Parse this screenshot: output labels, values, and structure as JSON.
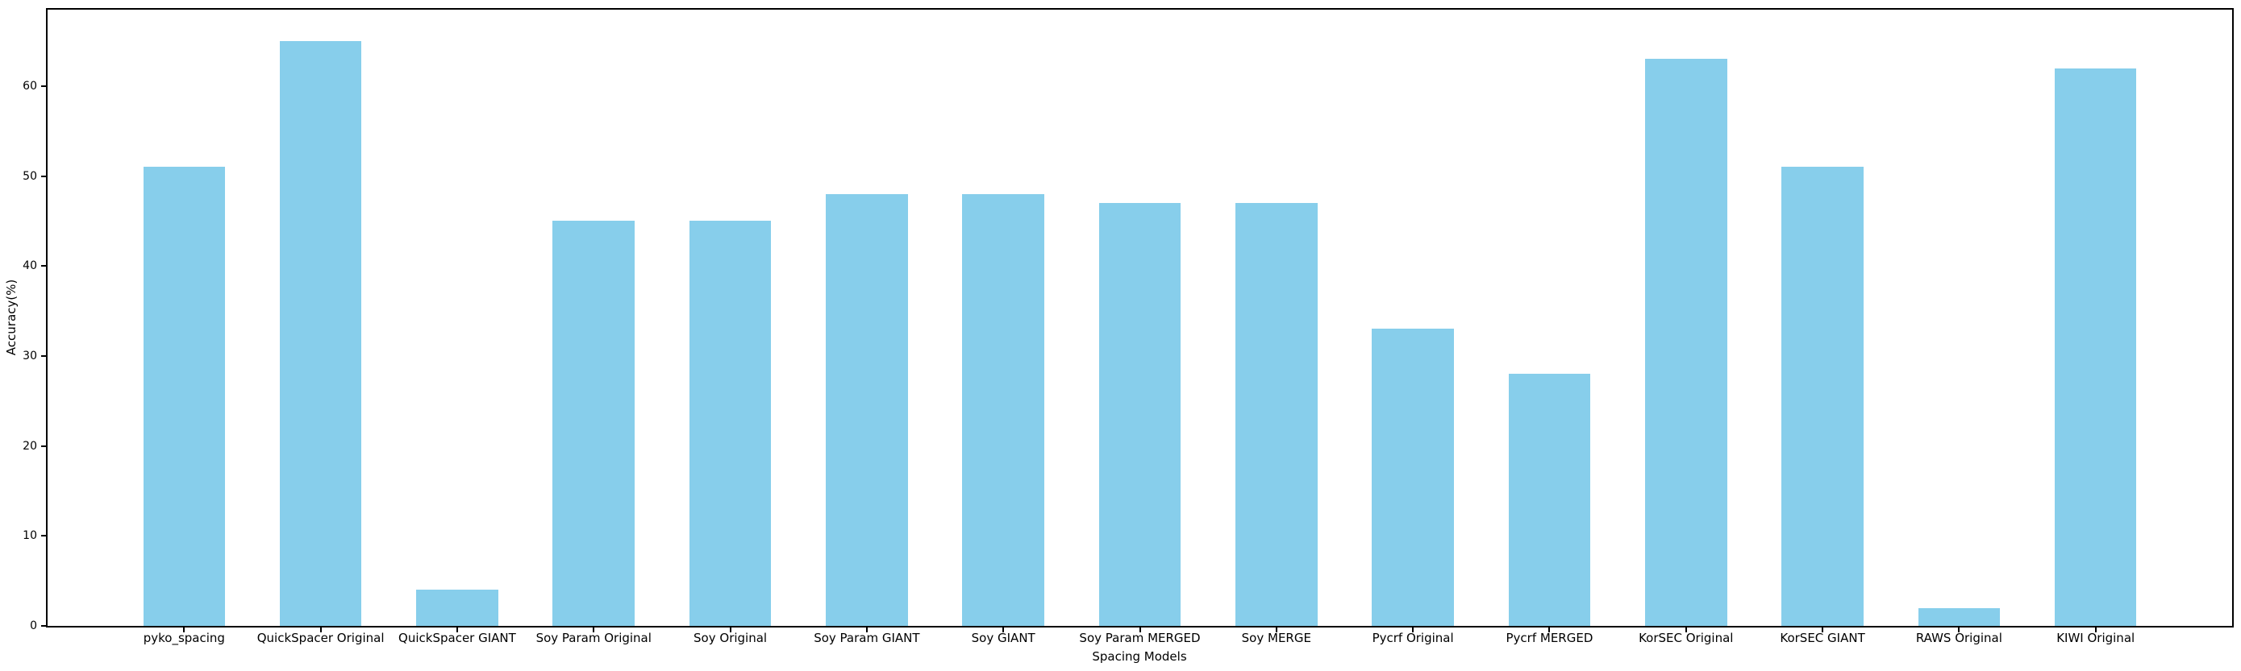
{
  "figure": {
    "background": "#ffffff",
    "spine_color": "#000000"
  },
  "chart_data": {
    "type": "bar",
    "title": "",
    "xlabel": "Spacing Models",
    "ylabel": "Accuracy(%)",
    "categories": [
      "pyko_spacing",
      "QuickSpacer Original",
      "QuickSpacer GIANT",
      "Soy Param Original",
      "Soy Original",
      "Soy Param GIANT",
      "Soy GIANT",
      "Soy Param MERGED",
      "Soy MERGE",
      "Pycrf Original",
      "Pycrf MERGED",
      "KorSEC Original",
      "KorSEC GIANT",
      "RAWS Original",
      "KIWI Original"
    ],
    "values": [
      51,
      65,
      4,
      45,
      45,
      48,
      48,
      47,
      47,
      33,
      28,
      63,
      51,
      2,
      62
    ],
    "bar_color": "#87CEEB",
    "yticks": [
      0,
      10,
      20,
      30,
      40,
      50,
      60
    ],
    "ylim": [
      0,
      68.5
    ],
    "xlim": [
      -1,
      15
    ],
    "bar_width_units": 0.6,
    "grid": false,
    "legend": null
  }
}
